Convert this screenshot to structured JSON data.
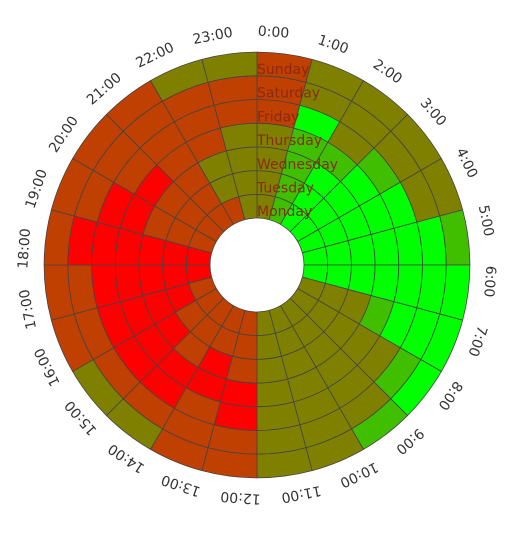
{
  "chart_data": {
    "type": "radial-heatmap",
    "categories": [
      "0:00",
      "1:00",
      "2:00",
      "3:00",
      "4:00",
      "5:00",
      "6:00",
      "7:00",
      "8:00",
      "9:00",
      "10:00",
      "11:00",
      "12:00",
      "13:00",
      "14:00",
      "15:00",
      "16:00",
      "17:00",
      "18:00",
      "19:00",
      "20:00",
      "21:00",
      "22:00",
      "23:00"
    ],
    "colors": [
      "#00ff00",
      "#40bf00",
      "#808000",
      "#bf4000",
      "#ff0000"
    ],
    "series": [
      {
        "name": "Monday",
        "values": [
          2,
          1,
          0,
          0,
          0,
          0,
          0,
          2,
          2,
          2,
          2,
          2,
          3,
          3,
          3,
          3,
          3,
          4,
          4,
          3,
          3,
          3,
          3,
          2
        ]
      },
      {
        "name": "Tuesday",
        "values": [
          2,
          1,
          0,
          0,
          0,
          0,
          0,
          2,
          2,
          2,
          2,
          2,
          3,
          3,
          3,
          3,
          4,
          4,
          4,
          3,
          3,
          3,
          2,
          2
        ]
      },
      {
        "name": "Wednesday",
        "values": [
          2,
          1,
          0,
          0,
          0,
          0,
          0,
          2,
          2,
          2,
          2,
          2,
          3,
          4,
          3,
          4,
          4,
          4,
          4,
          3,
          3,
          3,
          2,
          2
        ]
      },
      {
        "name": "Thursday",
        "values": [
          2,
          1,
          1,
          0,
          0,
          0,
          0,
          1,
          2,
          2,
          2,
          2,
          4,
          4,
          4,
          4,
          4,
          4,
          4,
          4,
          4,
          3,
          3,
          2
        ]
      },
      {
        "name": "Friday",
        "values": [
          3,
          0,
          2,
          1,
          0,
          0,
          0,
          0,
          2,
          2,
          2,
          2,
          4,
          3,
          4,
          4,
          4,
          4,
          4,
          4,
          3,
          3,
          3,
          3
        ]
      },
      {
        "name": "Saturday",
        "values": [
          3,
          2,
          2,
          2,
          2,
          0,
          0,
          0,
          1,
          2,
          2,
          2,
          3,
          3,
          3,
          3,
          3,
          3,
          4,
          3,
          3,
          3,
          3,
          3
        ]
      },
      {
        "name": "Sunday",
        "values": [
          3,
          2,
          2,
          2,
          2,
          1,
          0,
          0,
          0,
          1,
          2,
          2,
          3,
          3,
          2,
          2,
          3,
          3,
          3,
          3,
          3,
          3,
          2,
          2
        ]
      }
    ]
  }
}
